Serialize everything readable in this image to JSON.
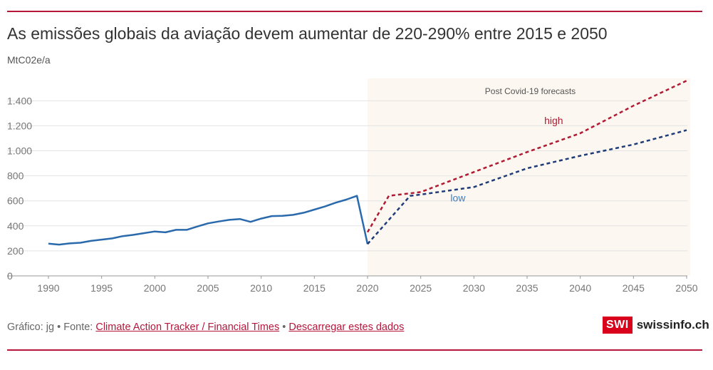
{
  "header": {
    "title": "As emissões globais da aviação devem aumentar de 220-290% entre 2015 e 2050",
    "unit": "MtC02e/a"
  },
  "footer": {
    "prefix": "Gráfico: jg • Fonte: ",
    "source_link": "Climate Action Tracker / Financial Times",
    "separator": " • ",
    "download_link": "Descarregar estes dados"
  },
  "brand": {
    "box": "SWI",
    "word": "swissinfo.ch",
    "color": "#d8001a"
  },
  "colors": {
    "rule": "#b5163a",
    "historical": "#2a6aac",
    "high": "#b01a33",
    "low": "#1f3c78",
    "forecast_band": "#fcf7f0"
  },
  "chart_data": {
    "type": "line",
    "xlim": [
      1990,
      2050
    ],
    "ylim": [
      0,
      1550
    ],
    "x_ticks": [
      1990,
      1995,
      2000,
      2005,
      2010,
      2015,
      2020,
      2025,
      2030,
      2035,
      2040,
      2045,
      2050
    ],
    "y_ticks": [
      0,
      200,
      400,
      600,
      800,
      1000,
      1200,
      1400
    ],
    "y_tick_labels": [
      "0",
      "200",
      "400",
      "600",
      "800",
      "1.000",
      "1.200",
      "1.400"
    ],
    "grid": true,
    "band": {
      "from": 2020,
      "to": 2050,
      "label": "Post Covid-19 forecasts"
    },
    "series": [
      {
        "style": "solid",
        "x": [
          1990,
          1991,
          1992,
          1993,
          1994,
          1995,
          1996,
          1997,
          1998,
          1999,
          2000,
          2001,
          2002,
          2003,
          2004,
          2005,
          2006,
          2007,
          2008,
          2009,
          2010,
          2011,
          2012,
          2013,
          2014,
          2015,
          2016,
          2017,
          2018,
          2019,
          2020
        ],
        "y": [
          258,
          250,
          260,
          265,
          280,
          290,
          300,
          318,
          328,
          342,
          355,
          348,
          368,
          368,
          395,
          420,
          435,
          448,
          455,
          432,
          458,
          478,
          480,
          488,
          505,
          530,
          555,
          585,
          610,
          640,
          255
        ]
      },
      {
        "name": "high",
        "style": "dashed",
        "x": [
          2020,
          2022,
          2025,
          2030,
          2035,
          2040,
          2045,
          2050
        ],
        "y": [
          350,
          640,
          670,
          830,
          990,
          1140,
          1360,
          1560
        ]
      },
      {
        "name": "low",
        "style": "dashed",
        "x": [
          2020,
          2024,
          2025,
          2030,
          2035,
          2040,
          2045,
          2050
        ],
        "y": [
          255,
          640,
          650,
          710,
          860,
          960,
          1050,
          1165
        ]
      }
    ]
  }
}
